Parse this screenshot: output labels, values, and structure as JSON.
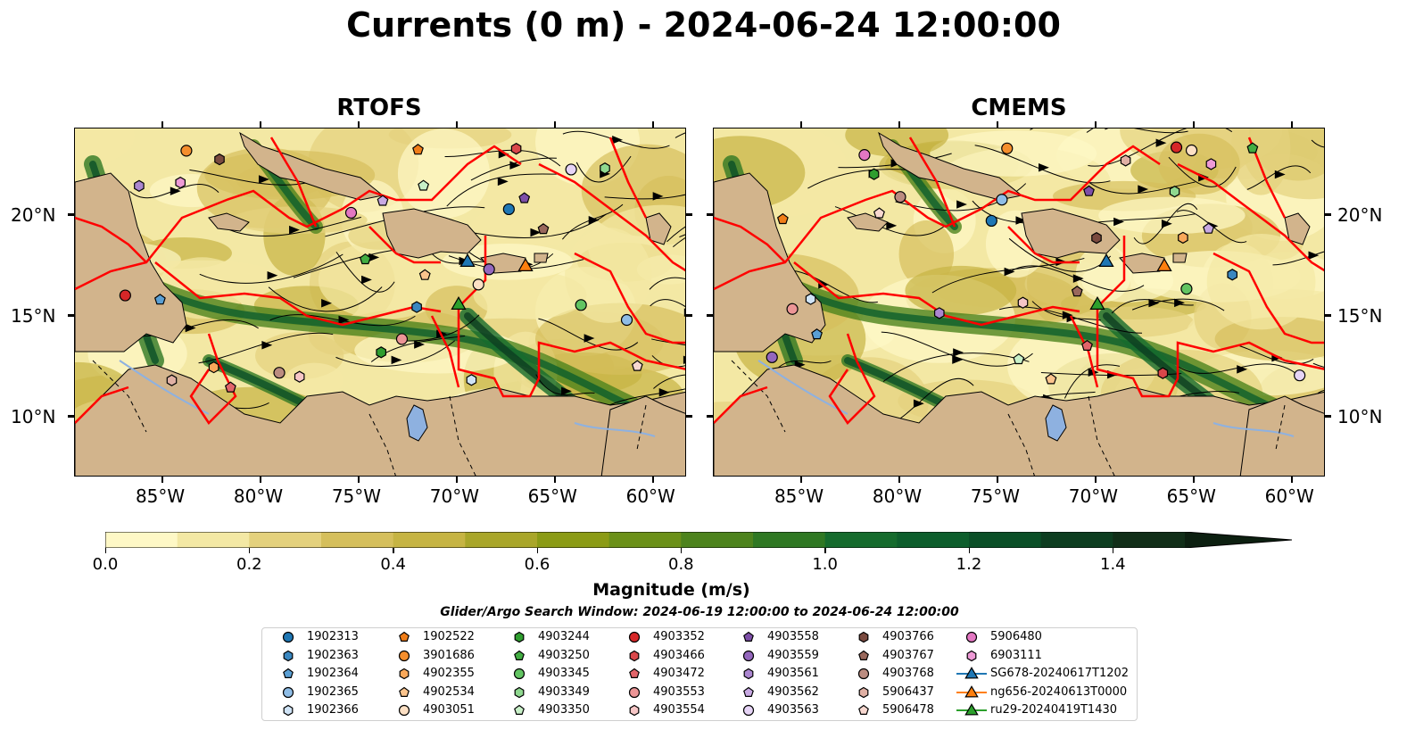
{
  "figure": {
    "suptitle": "Currents (0 m) - 2024-06-24 12:00:00",
    "panels": [
      {
        "title": "RTOFS"
      },
      {
        "title": "CMEMS"
      }
    ],
    "lat_ticks": [
      "20°N",
      "15°N",
      "10°N"
    ],
    "lon_ticks": [
      "85°W",
      "80°W",
      "75°W",
      "70°W",
      "65°W",
      "60°W"
    ],
    "extent": {
      "lon_min": -89.5,
      "lon_max": -58.3,
      "lat_min": 7.0,
      "lat_max": 24.3
    },
    "colors": {
      "land": "#d2b48c",
      "boundary": "#ff0000",
      "water_bodies": "#8eb1e0",
      "streamline": "#000000"
    }
  },
  "colorbar": {
    "label": "Magnitude (m/s)",
    "ticks": [
      "0.0",
      "0.2",
      "0.4",
      "0.6",
      "0.8",
      "1.0",
      "1.2",
      "1.4"
    ],
    "range": [
      0.0,
      1.5
    ],
    "extend": "max",
    "colors": [
      "#fef8c6",
      "#f3e8a4",
      "#e4d17d",
      "#d5bf5c",
      "#c6b443",
      "#a9a629",
      "#8b9b15",
      "#6b9018",
      "#4d831d",
      "#2f7823",
      "#156b2d",
      "#0d5e2c",
      "#0a4f27",
      "#0d3d20",
      "#112e18",
      "#0c1f10"
    ]
  },
  "search_window": "Glider/Argo Search Window: 2024-06-19 12:00:00 to 2024-06-24 12:00:00",
  "legend": {
    "columns": [
      [
        {
          "label": "1902313",
          "marker": "circle",
          "color": "#1f77b4"
        },
        {
          "label": "1902363",
          "marker": "hexagon",
          "color": "#3a87c0"
        },
        {
          "label": "1902364",
          "marker": "pentagon",
          "color": "#5a9fd4"
        },
        {
          "label": "1902365",
          "marker": "circle",
          "color": "#8fbde6"
        },
        {
          "label": "1902366",
          "marker": "hexagon",
          "color": "#cfe3f6"
        }
      ],
      [
        {
          "label": "1902522",
          "marker": "pentagon",
          "color": "#f07d18"
        },
        {
          "label": "3901686",
          "marker": "circle",
          "color": "#f58e2c"
        },
        {
          "label": "4902355",
          "marker": "hexagon",
          "color": "#f9a85a"
        },
        {
          "label": "4902534",
          "marker": "pentagon",
          "color": "#fcc48d"
        },
        {
          "label": "4903051",
          "marker": "circle",
          "color": "#fde0c4"
        }
      ],
      [
        {
          "label": "4903244",
          "marker": "hexagon",
          "color": "#2f9e2f"
        },
        {
          "label": "4903250",
          "marker": "pentagon",
          "color": "#42ad42"
        },
        {
          "label": "4903345",
          "marker": "circle",
          "color": "#62c462"
        },
        {
          "label": "4903349",
          "marker": "hexagon",
          "color": "#8fd88f"
        },
        {
          "label": "4903350",
          "marker": "pentagon",
          "color": "#c8f0c8"
        }
      ],
      [
        {
          "label": "4903352",
          "marker": "circle",
          "color": "#d62728"
        },
        {
          "label": "4903466",
          "marker": "hexagon",
          "color": "#d9474a"
        },
        {
          "label": "4903472",
          "marker": "pentagon",
          "color": "#e2656a"
        },
        {
          "label": "4903553",
          "marker": "circle",
          "color": "#ec9596"
        },
        {
          "label": "4903554",
          "marker": "hexagon",
          "color": "#f6c6c6"
        }
      ],
      [
        {
          "label": "4903558",
          "marker": "pentagon",
          "color": "#7d4fa8"
        },
        {
          "label": "4903559",
          "marker": "circle",
          "color": "#9467bd"
        },
        {
          "label": "4903561",
          "marker": "hexagon",
          "color": "#ab86d0"
        },
        {
          "label": "4903562",
          "marker": "pentagon",
          "color": "#c8a9e3"
        },
        {
          "label": "4903563",
          "marker": "circle",
          "color": "#e6d4f6"
        }
      ],
      [
        {
          "label": "4903766",
          "marker": "hexagon",
          "color": "#7a4a3f"
        },
        {
          "label": "4903767",
          "marker": "pentagon",
          "color": "#99685c"
        },
        {
          "label": "4903768",
          "marker": "circle",
          "color": "#bb8c80"
        },
        {
          "label": "5906437",
          "marker": "hexagon",
          "color": "#e0b0a4"
        },
        {
          "label": "5906478",
          "marker": "pentagon",
          "color": "#f8d8d0"
        }
      ],
      [
        {
          "label": "5906480",
          "marker": "circle",
          "color": "#e377c2"
        },
        {
          "label": "6903111",
          "marker": "hexagon",
          "color": "#ee9ad6"
        },
        {
          "label": "SG678-20240617T1202",
          "marker": "triangle-line",
          "color": "#1f77b4"
        },
        {
          "label": "ng656-20240613T0000",
          "marker": "triangle-line",
          "color": "#ff7f0e"
        },
        {
          "label": "ru29-20240419T1430",
          "marker": "triangle-line",
          "color": "#2ca02c"
        }
      ]
    ]
  }
}
